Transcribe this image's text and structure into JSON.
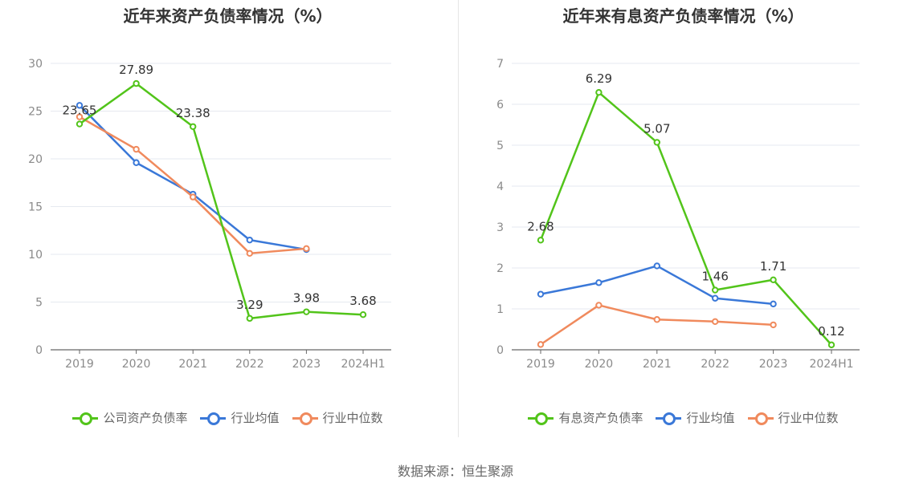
{
  "source": "数据来源：恒生聚源",
  "chart_data": [
    {
      "type": "line",
      "title": "近年来资产负债率情况（%）",
      "categories": [
        "2019",
        "2020",
        "2021",
        "2022",
        "2023",
        "2024H1"
      ],
      "ylim": [
        0,
        30
      ],
      "yticks": [
        "0",
        "5",
        "10",
        "15",
        "20",
        "25",
        "30"
      ],
      "grid": true,
      "legend_position": "bottom",
      "series": [
        {
          "name": "公司资产负债率",
          "color": "#52c41a",
          "values": [
            23.65,
            27.89,
            23.38,
            3.29,
            3.98,
            3.68
          ],
          "labels": [
            "23.65",
            "27.89",
            "23.38",
            "3.29",
            "3.98",
            "3.68"
          ]
        },
        {
          "name": "行业均值",
          "color": "#3a78d8",
          "values": [
            25.6,
            19.6,
            16.3,
            11.5,
            10.5,
            null
          ],
          "labels": []
        },
        {
          "name": "行业中位数",
          "color": "#f08a5d",
          "values": [
            24.4,
            21.0,
            16.0,
            10.1,
            10.6,
            null
          ],
          "labels": []
        }
      ]
    },
    {
      "type": "line",
      "title": "近年来有息资产负债率情况（%）",
      "categories": [
        "2019",
        "2020",
        "2021",
        "2022",
        "2023",
        "2024H1"
      ],
      "ylim": [
        0,
        7
      ],
      "yticks": [
        "0",
        "1",
        "2",
        "3",
        "4",
        "5",
        "6",
        "7"
      ],
      "grid": true,
      "legend_position": "bottom",
      "series": [
        {
          "name": "有息资产负债率",
          "color": "#52c41a",
          "values": [
            2.68,
            6.29,
            5.07,
            1.46,
            1.71,
            0.12
          ],
          "labels": [
            "2.68",
            "6.29",
            "5.07",
            "1.46",
            "1.71",
            "0.12"
          ]
        },
        {
          "name": "行业均值",
          "color": "#3a78d8",
          "values": [
            1.36,
            1.64,
            2.05,
            1.26,
            1.12,
            null
          ],
          "labels": []
        },
        {
          "name": "行业中位数",
          "color": "#f08a5d",
          "values": [
            0.13,
            1.09,
            0.74,
            0.69,
            0.61,
            null
          ],
          "labels": []
        }
      ]
    }
  ]
}
